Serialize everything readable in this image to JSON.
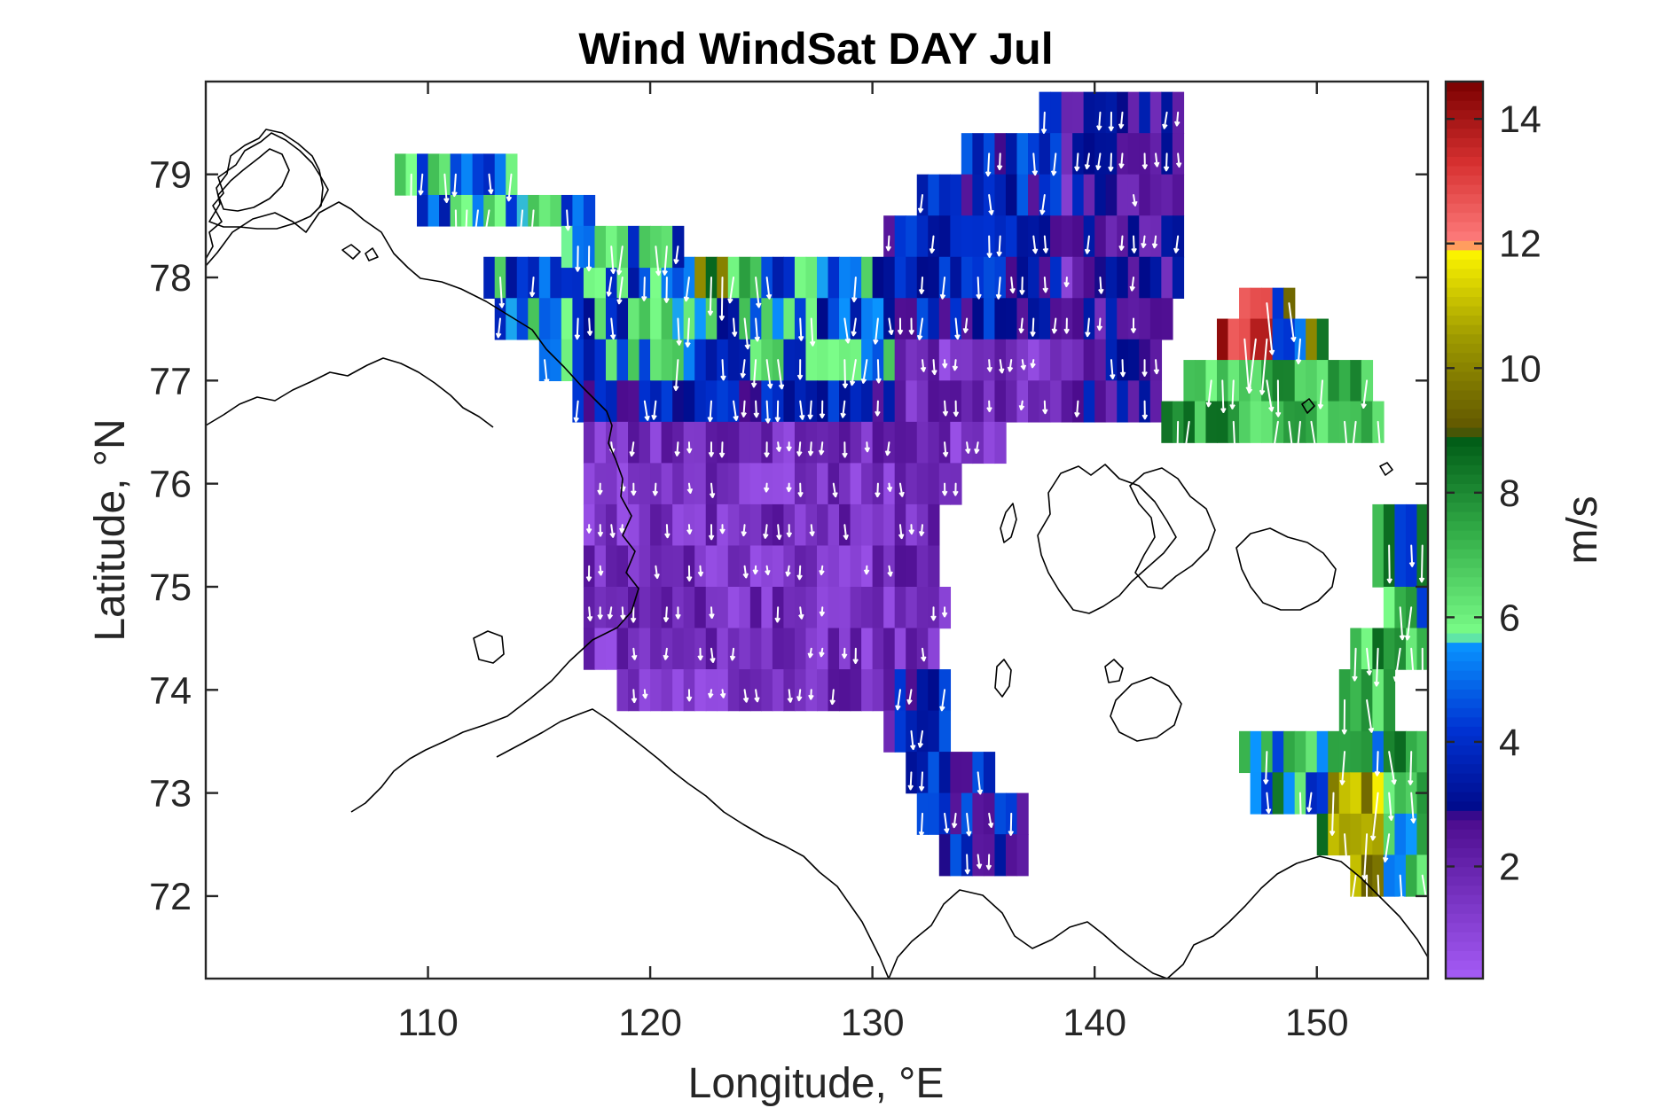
{
  "chart_data": {
    "type": "heatmap",
    "title": "Wind WindSat DAY Jul",
    "xlabel": "Longitude, °E",
    "ylabel": "Latitude, °N",
    "xlim": [
      100,
      155
    ],
    "ylim": [
      71.2,
      79.9
    ],
    "xticks": [
      110,
      120,
      130,
      140,
      150
    ],
    "yticks": [
      72,
      73,
      74,
      75,
      76,
      77,
      78,
      79
    ],
    "colorbar": {
      "label": "m/s",
      "range": [
        0.2,
        14.6
      ],
      "ticks": [
        2,
        4,
        6,
        8,
        10,
        12,
        14
      ],
      "stops": [
        {
          "v": 0.2,
          "color": "#a65cf7"
        },
        {
          "v": 2.8,
          "color": "#4a0a8c"
        },
        {
          "v": 2.9,
          "color": "#000a8a"
        },
        {
          "v": 4.2,
          "color": "#0032d2"
        },
        {
          "v": 5.6,
          "color": "#0a96ff"
        },
        {
          "v": 5.7,
          "color": "#7cff8a"
        },
        {
          "v": 7.3,
          "color": "#35b04a"
        },
        {
          "v": 8.9,
          "color": "#005a16"
        },
        {
          "v": 9.0,
          "color": "#5f5500"
        },
        {
          "v": 10.5,
          "color": "#9e9a00"
        },
        {
          "v": 11.9,
          "color": "#fff700"
        },
        {
          "v": 12.0,
          "color": "#ff7f7f"
        },
        {
          "v": 13.3,
          "color": "#d73030"
        },
        {
          "v": 14.6,
          "color": "#7a0000"
        }
      ]
    },
    "regions": [
      {
        "name": "main-sea",
        "rows": [
          {
            "lat": 79.8,
            "lon": [
              137.5,
              144.0
            ]
          },
          {
            "lat": 79.4,
            "lon": [
              134.0,
              144.0
            ]
          },
          {
            "lat": 79.0,
            "lon": [
              132.0,
              144.0
            ]
          },
          {
            "lat": 78.6,
            "lon": [
              130.5,
              144.0
            ]
          },
          {
            "lat": 78.2,
            "lon": [
              112.5,
              144.0
            ]
          },
          {
            "lat": 77.8,
            "lon": [
              113.0,
              143.5
            ]
          },
          {
            "lat": 77.4,
            "lon": [
              115.0,
              143.0
            ]
          },
          {
            "lat": 77.0,
            "lon": [
              116.5,
              143.0
            ]
          },
          {
            "lat": 76.6,
            "lon": [
              117.0,
              136.0
            ]
          },
          {
            "lat": 76.2,
            "lon": [
              117.0,
              134.0
            ]
          },
          {
            "lat": 75.8,
            "lon": [
              117.0,
              133.0
            ]
          },
          {
            "lat": 75.4,
            "lon": [
              117.0,
              133.0
            ]
          },
          {
            "lat": 75.0,
            "lon": [
              117.0,
              133.5
            ]
          },
          {
            "lat": 74.6,
            "lon": [
              117.0,
              133.0
            ]
          },
          {
            "lat": 74.2,
            "lon": [
              118.5,
              133.5
            ]
          },
          {
            "lat": 73.8,
            "lon": [
              130.5,
              133.5
            ]
          },
          {
            "lat": 73.4,
            "lon": [
              131.5,
              135.5
            ]
          },
          {
            "lat": 73.0,
            "lon": [
              132.0,
              137.0
            ]
          },
          {
            "lat": 72.6,
            "lon": [
              133.0,
              137.0
            ]
          }
        ]
      },
      {
        "name": "nw-band",
        "rows": [
          {
            "lat": 79.2,
            "lon": [
              108.5,
              114.0
            ]
          },
          {
            "lat": 78.8,
            "lon": [
              109.5,
              117.5
            ]
          },
          {
            "lat": 78.5,
            "lon": [
              116.0,
              121.5
            ]
          }
        ]
      },
      {
        "name": "ne-patch",
        "rows": [
          {
            "lat": 77.9,
            "lon": [
              146.5,
              149.0
            ]
          },
          {
            "lat": 77.6,
            "lon": [
              145.5,
              150.5
            ]
          },
          {
            "lat": 77.2,
            "lon": [
              144.0,
              152.5
            ]
          },
          {
            "lat": 76.8,
            "lon": [
              143.0,
              153.0
            ]
          }
        ]
      },
      {
        "name": "east-edge",
        "rows": [
          {
            "lat": 75.8,
            "lon": [
              152.5,
              155.0
            ]
          },
          {
            "lat": 75.0,
            "lon": [
              153.0,
              155.0
            ]
          },
          {
            "lat": 74.6,
            "lon": [
              151.5,
              155.0
            ]
          },
          {
            "lat": 74.2,
            "lon": [
              151.0,
              153.5
            ]
          },
          {
            "lat": 73.6,
            "lon": [
              146.5,
              155.0
            ]
          },
          {
            "lat": 73.2,
            "lon": [
              147.0,
              155.0
            ]
          },
          {
            "lat": 72.8,
            "lon": [
              150.0,
              155.0
            ]
          },
          {
            "lat": 72.4,
            "lon": [
              151.5,
              155.0
            ]
          }
        ]
      }
    ]
  }
}
